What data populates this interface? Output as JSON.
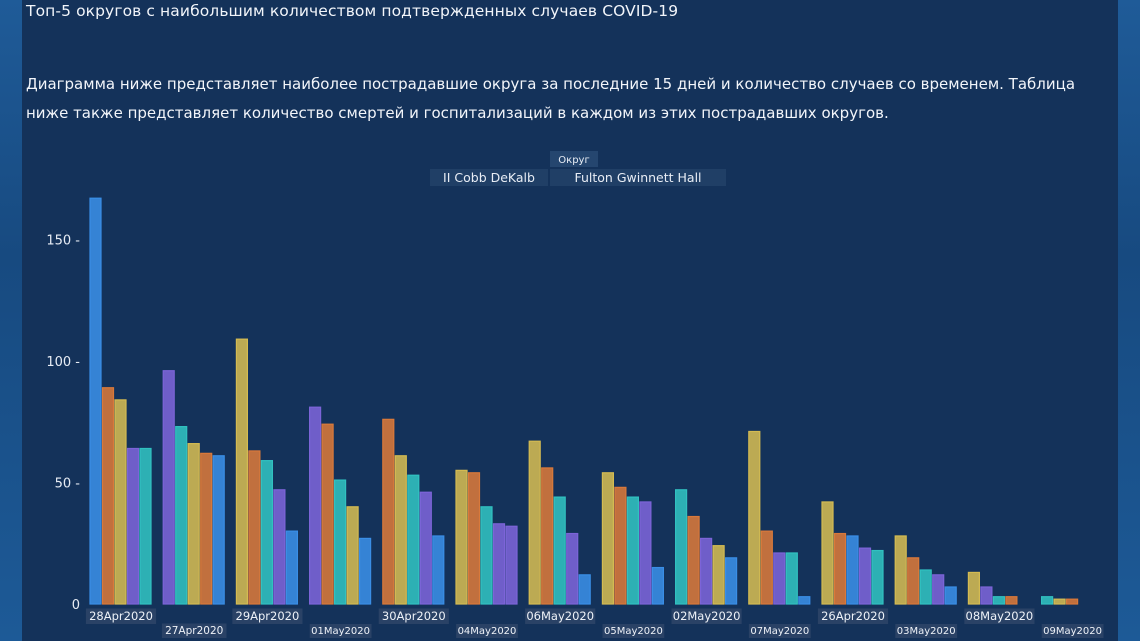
{
  "title": "Топ-5 округов с наибольшим количеством подтвержденных случаев COVID-19",
  "description": "Диаграмма ниже представляет наиболее пострадавшие округа за последние 15 дней и количество случаев со временем. Таблица ниже также представляет количество смертей и госпитализаций в каждом из этих пострадавших округов.",
  "legend": {
    "title": "Округ",
    "left_text": "II Cobb DeKalb",
    "right_text": "Fulton Gwinnett Hall"
  },
  "colors": {
    "panel": "#14325a",
    "blue": "#3a8ee6",
    "orange": "#d9793a",
    "yellow": "#d4bb52",
    "purple": "#7c64d8",
    "teal": "#31c1c0"
  },
  "chart_data": {
    "type": "bar",
    "ylim": [
      0,
      170
    ],
    "yticks": [
      0,
      50,
      100,
      150
    ],
    "ytick_labels": [
      "0",
      "50 -",
      "100 -",
      "150 -"
    ],
    "categories": [
      "28Apr2020",
      "27Apr2020",
      "29Apr2020",
      "01May2020",
      "30Apr2020",
      "04May2020",
      "06May2020",
      "05May2020",
      "02May2020",
      "07May2020",
      "26Apr2020",
      "03May2020",
      "08May2020",
      "09May2020"
    ],
    "groups": [
      {
        "label": "28Apr2020",
        "bars": [
          {
            "color": "blue",
            "value": 167
          },
          {
            "color": "orange",
            "value": 89
          },
          {
            "color": "yellow",
            "value": 84
          },
          {
            "color": "purple",
            "value": 64
          },
          {
            "color": "teal",
            "value": 64
          }
        ]
      },
      {
        "label": "27Apr2020",
        "bars": [
          {
            "color": "purple",
            "value": 96
          },
          {
            "color": "teal",
            "value": 73
          },
          {
            "color": "yellow",
            "value": 66
          },
          {
            "color": "orange",
            "value": 62
          },
          {
            "color": "blue",
            "value": 61
          }
        ]
      },
      {
        "label": "29Apr2020",
        "bars": [
          {
            "color": "yellow",
            "value": 109
          },
          {
            "color": "orange",
            "value": 63
          },
          {
            "color": "teal",
            "value": 59
          },
          {
            "color": "purple",
            "value": 47
          },
          {
            "color": "blue",
            "value": 30
          }
        ]
      },
      {
        "label": "01May2020",
        "bars": [
          {
            "color": "purple",
            "value": 81
          },
          {
            "color": "orange",
            "value": 74
          },
          {
            "color": "teal",
            "value": 51
          },
          {
            "color": "yellow",
            "value": 40
          },
          {
            "color": "blue",
            "value": 27
          }
        ]
      },
      {
        "label": "30Apr2020",
        "bars": [
          {
            "color": "orange",
            "value": 76
          },
          {
            "color": "yellow",
            "value": 61
          },
          {
            "color": "teal",
            "value": 53
          },
          {
            "color": "purple",
            "value": 46
          },
          {
            "color": "blue",
            "value": 28
          }
        ]
      },
      {
        "label": "04May2020",
        "bars": [
          {
            "color": "yellow",
            "value": 55
          },
          {
            "color": "orange",
            "value": 54
          },
          {
            "color": "teal",
            "value": 40
          },
          {
            "color": "purple",
            "value": 33
          },
          {
            "color": "purple",
            "value": 32
          }
        ]
      },
      {
        "label": "06May2020",
        "bars": [
          {
            "color": "yellow",
            "value": 67
          },
          {
            "color": "orange",
            "value": 56
          },
          {
            "color": "teal",
            "value": 44
          },
          {
            "color": "purple",
            "value": 29
          },
          {
            "color": "blue",
            "value": 12
          }
        ]
      },
      {
        "label": "05May2020",
        "bars": [
          {
            "color": "yellow",
            "value": 54
          },
          {
            "color": "orange",
            "value": 48
          },
          {
            "color": "teal",
            "value": 44
          },
          {
            "color": "purple",
            "value": 42
          },
          {
            "color": "blue",
            "value": 15
          }
        ]
      },
      {
        "label": "02May2020",
        "bars": [
          {
            "color": "teal",
            "value": 47
          },
          {
            "color": "orange",
            "value": 36
          },
          {
            "color": "purple",
            "value": 27
          },
          {
            "color": "yellow",
            "value": 24
          },
          {
            "color": "blue",
            "value": 19
          }
        ]
      },
      {
        "label": "07May2020",
        "bars": [
          {
            "color": "yellow",
            "value": 71
          },
          {
            "color": "orange",
            "value": 30
          },
          {
            "color": "purple",
            "value": 21
          },
          {
            "color": "teal",
            "value": 21
          },
          {
            "color": "blue",
            "value": 3
          }
        ]
      },
      {
        "label": "26Apr2020",
        "bars": [
          {
            "color": "yellow",
            "value": 42
          },
          {
            "color": "orange",
            "value": 29
          },
          {
            "color": "blue",
            "value": 28
          },
          {
            "color": "purple",
            "value": 23
          },
          {
            "color": "teal",
            "value": 22
          }
        ]
      },
      {
        "label": "03May2020",
        "bars": [
          {
            "color": "yellow",
            "value": 28
          },
          {
            "color": "orange",
            "value": 19
          },
          {
            "color": "teal",
            "value": 14
          },
          {
            "color": "purple",
            "value": 12
          },
          {
            "color": "blue",
            "value": 7
          }
        ]
      },
      {
        "label": "08May2020",
        "bars": [
          {
            "color": "yellow",
            "value": 13
          },
          {
            "color": "purple",
            "value": 7
          },
          {
            "color": "teal",
            "value": 3
          },
          {
            "color": "orange",
            "value": 3
          }
        ]
      },
      {
        "label": "09May2020",
        "bars": [
          {
            "color": "teal",
            "value": 3
          },
          {
            "color": "yellow",
            "value": 2
          },
          {
            "color": "orange",
            "value": 2
          }
        ]
      }
    ]
  }
}
